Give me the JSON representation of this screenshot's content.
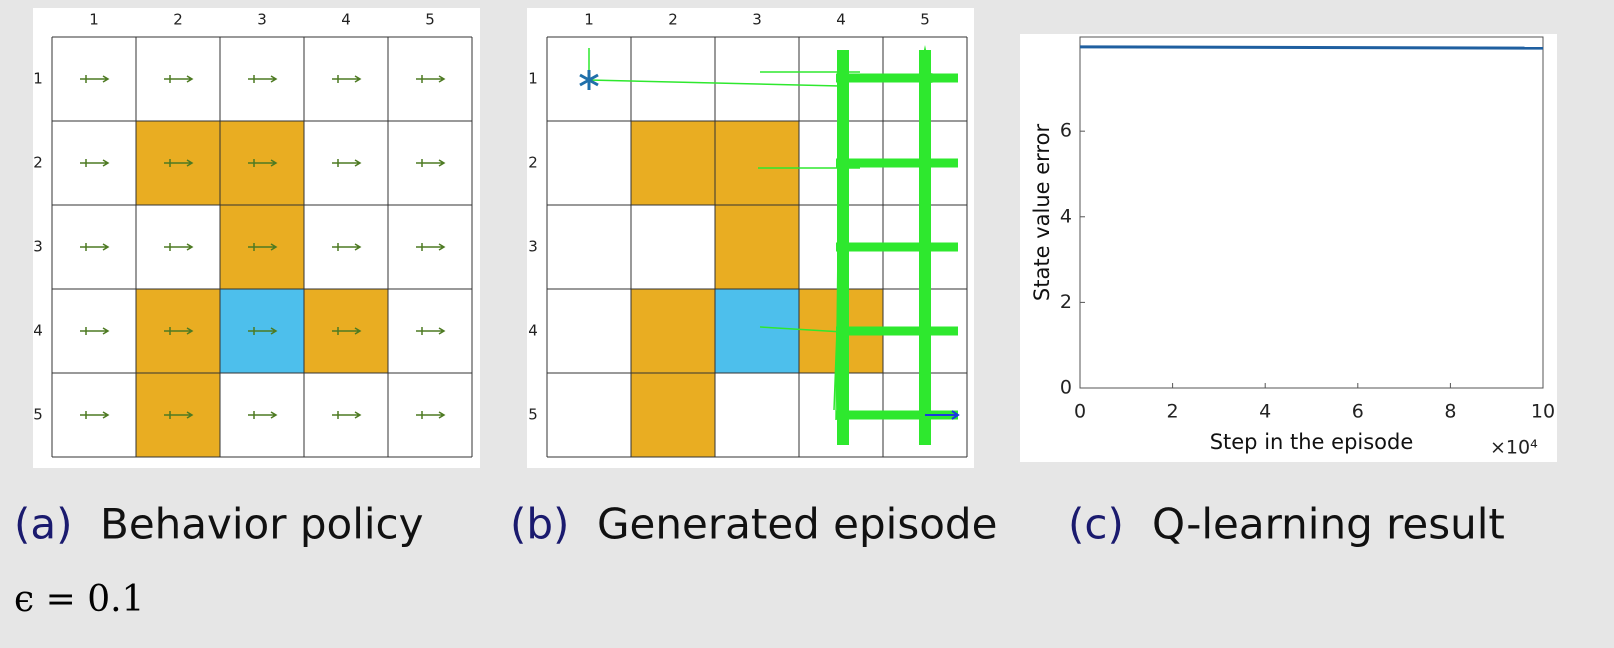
{
  "grid": {
    "columns": [
      "1",
      "2",
      "3",
      "4",
      "5"
    ],
    "rows": [
      "1",
      "2",
      "3",
      "4",
      "5"
    ]
  },
  "panels": [
    {
      "label": "(a)",
      "caption": "Behavior policy"
    },
    {
      "label": "(b)",
      "caption": "Generated episode"
    },
    {
      "label": "(c)",
      "caption": "Q-learning result"
    }
  ],
  "note": "ϵ = 0.1",
  "chart_data": {
    "type": "line",
    "xlabel": "Step in the episode",
    "ylabel": "State value error",
    "x_multiplier": "×10⁴",
    "x": [
      0,
      10
    ],
    "values": [
      7.97,
      7.94
    ],
    "color": "#1f5fa0",
    "xlim": [
      0,
      10
    ],
    "xticks": [
      0,
      2,
      4,
      6,
      8,
      10
    ],
    "ylim": [
      0,
      8.2
    ],
    "yticks": [
      0,
      2,
      4,
      6
    ]
  }
}
